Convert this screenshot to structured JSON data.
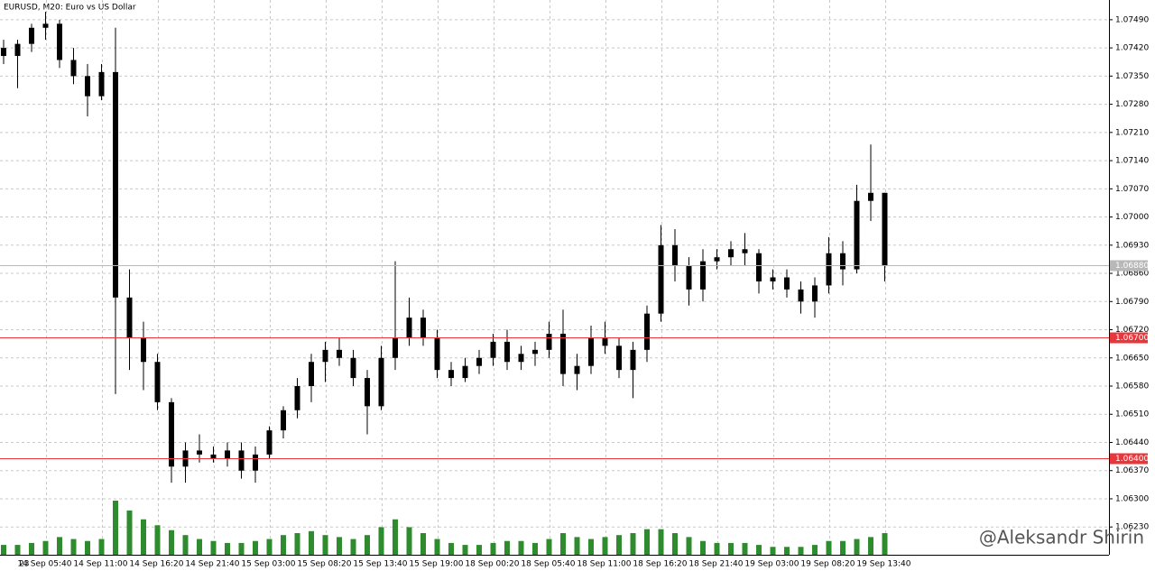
{
  "chart_data": {
    "type": "candlestick",
    "title": "EURUSD, M20:  Euro vs US Dollar",
    "watermark": "@Aleksandr Shirin",
    "categories": [
      "23",
      null,
      null,
      "14 Sep 05:40",
      null,
      null,
      null,
      "14 Sep 11:00",
      null,
      null,
      null,
      "14 Sep 16:20",
      null,
      null,
      null,
      "14 Sep 21:40",
      null,
      null,
      null,
      "15 Sep 03:00",
      null,
      null,
      null,
      "15 Sep 08:20",
      null,
      null,
      null,
      "15 Sep 13:40",
      null,
      null,
      null,
      "15 Sep 19:00",
      null,
      null,
      null,
      "18 Sep 00:20",
      null,
      null,
      null,
      "18 Sep 05:40",
      null,
      null,
      null,
      "18 Sep 11:00",
      null,
      null,
      null,
      "18 Sep 16:20",
      null,
      null,
      null,
      "18 Sep 21:40",
      null,
      null,
      null,
      "19 Sep 03:00",
      null,
      null,
      null,
      "19 Sep 08:20",
      null,
      null,
      null,
      "19 Sep 13:40"
    ],
    "open": [
      1.0742,
      1.074,
      1.0743,
      1.0747,
      1.0748,
      1.0739,
      1.0735,
      1.073,
      1.0736,
      1.068,
      1.067,
      1.0664,
      1.0654,
      1.0638,
      1.0642,
      1.0641,
      1.064,
      1.0642,
      1.0637,
      1.0641,
      1.0647,
      1.0652,
      1.0658,
      1.0664,
      1.0667,
      1.0665,
      1.066,
      1.0653,
      1.0665,
      1.067,
      1.0675,
      1.067,
      1.0662,
      1.066,
      1.0663,
      1.0665,
      1.0669,
      1.0664,
      1.0666,
      1.0667,
      1.0671,
      1.0661,
      1.0663,
      1.067,
      1.0668,
      1.0662,
      1.0667,
      1.0676,
      1.0693,
      1.0688,
      1.0682,
      1.0689,
      1.069,
      1.0692,
      1.0691,
      1.0684,
      1.0685,
      1.0682,
      1.0679,
      1.0683,
      1.0691,
      1.0687,
      1.0704,
      1.0706
    ],
    "high": [
      1.0744,
      1.0744,
      1.0748,
      1.0751,
      1.0749,
      1.0742,
      1.0738,
      1.0738,
      1.0747,
      1.0687,
      1.0674,
      1.0666,
      1.0655,
      1.0644,
      1.0646,
      1.0643,
      1.0644,
      1.0644,
      1.0643,
      1.0648,
      1.0653,
      1.066,
      1.0666,
      1.0669,
      1.067,
      1.0667,
      1.0662,
      1.0668,
      1.0689,
      1.068,
      1.0677,
      1.0672,
      1.0664,
      1.0665,
      1.0667,
      1.0671,
      1.0672,
      1.0668,
      1.0669,
      1.0674,
      1.0677,
      1.0666,
      1.0673,
      1.0674,
      1.067,
      1.0669,
      1.0678,
      1.0698,
      1.0697,
      1.069,
      1.0692,
      1.0692,
      1.0694,
      1.0696,
      1.0692,
      1.0687,
      1.0687,
      1.0684,
      1.0685,
      1.0695,
      1.0694,
      1.0708,
      1.0718,
      1.0706
    ],
    "low": [
      1.0738,
      1.0732,
      1.0741,
      1.0744,
      1.0737,
      1.0733,
      1.0725,
      1.0729,
      1.0656,
      1.0662,
      1.0657,
      1.0652,
      1.0634,
      1.0634,
      1.0639,
      1.0639,
      1.0638,
      1.0635,
      1.0634,
      1.064,
      1.0645,
      1.065,
      1.0654,
      1.0659,
      1.0663,
      1.0658,
      1.0646,
      1.0652,
      1.0662,
      1.0668,
      1.0668,
      1.066,
      1.0658,
      1.0659,
      1.0661,
      1.0663,
      1.0662,
      1.0662,
      1.0663,
      1.0665,
      1.0658,
      1.0657,
      1.0661,
      1.0666,
      1.066,
      1.0655,
      1.0664,
      1.0674,
      1.0684,
      1.0678,
      1.0679,
      1.0687,
      1.0688,
      1.0688,
      1.0681,
      1.0682,
      1.068,
      1.0676,
      1.0675,
      1.0681,
      1.0683,
      1.0686,
      1.0699,
      1.0684
    ],
    "close": [
      1.074,
      1.0743,
      1.0747,
      1.0748,
      1.0739,
      1.0735,
      1.073,
      1.0736,
      1.068,
      1.067,
      1.0664,
      1.0654,
      1.0638,
      1.0642,
      1.0641,
      1.064,
      1.0642,
      1.0637,
      1.0641,
      1.0647,
      1.0652,
      1.0658,
      1.0664,
      1.0667,
      1.0665,
      1.066,
      1.0653,
      1.0665,
      1.067,
      1.0675,
      1.067,
      1.0662,
      1.066,
      1.0663,
      1.0665,
      1.0669,
      1.0664,
      1.0666,
      1.0667,
      1.0671,
      1.0661,
      1.0663,
      1.067,
      1.0668,
      1.0662,
      1.0667,
      1.0676,
      1.0693,
      1.0688,
      1.0682,
      1.0689,
      1.069,
      1.0692,
      1.0691,
      1.0684,
      1.0685,
      1.0682,
      1.0679,
      1.0683,
      1.0691,
      1.0687,
      1.0704,
      1.0706,
      1.0688
    ],
    "volume": [
      10,
      10,
      12,
      14,
      18,
      16,
      14,
      16,
      55,
      45,
      36,
      30,
      25,
      20,
      16,
      14,
      12,
      12,
      14,
      16,
      20,
      22,
      24,
      20,
      18,
      16,
      20,
      28,
      36,
      28,
      22,
      16,
      12,
      10,
      10,
      12,
      14,
      14,
      12,
      16,
      22,
      18,
      16,
      18,
      20,
      22,
      26,
      26,
      22,
      18,
      14,
      12,
      12,
      12,
      10,
      8,
      8,
      8,
      10,
      14,
      14,
      16,
      18,
      22
    ],
    "color": "#000000",
    "volume_color": "#2e8b2e",
    "ylim": [
      1.06161,
      1.07539
    ],
    "yticks": [
      {
        "value": 1.0749,
        "label": "1.07490"
      },
      {
        "value": 1.0742,
        "label": "1.07420"
      },
      {
        "value": 1.0735,
        "label": "1.07350"
      },
      {
        "value": 1.0728,
        "label": "1.07280"
      },
      {
        "value": 1.0721,
        "label": "1.07210"
      },
      {
        "value": 1.0714,
        "label": "1.07140"
      },
      {
        "value": 1.0707,
        "label": "1.07070"
      },
      {
        "value": 1.07,
        "label": "1.07000"
      },
      {
        "value": 1.0693,
        "label": "1.06930"
      },
      {
        "value": 1.0686,
        "label": "1.06860"
      },
      {
        "value": 1.0679,
        "label": "1.06790"
      },
      {
        "value": 1.0672,
        "label": "1.06720"
      },
      {
        "value": 1.0665,
        "label": "1.06650"
      },
      {
        "value": 1.0658,
        "label": "1.06580"
      },
      {
        "value": 1.0651,
        "label": "1.06510"
      },
      {
        "value": 1.0644,
        "label": "1.06440"
      },
      {
        "value": 1.0637,
        "label": "1.06370"
      },
      {
        "value": 1.063,
        "label": "1.06300"
      },
      {
        "value": 1.0623,
        "label": "1.06230"
      }
    ],
    "levels": [
      {
        "value": 1.067,
        "label": "1.06700",
        "color": "#e8363a"
      },
      {
        "value": 1.064,
        "label": "1.06400",
        "color": "#e8363a"
      },
      {
        "value": 1.0688,
        "label": "1.06880",
        "color": "#b8b8b8"
      }
    ],
    "grid": true
  }
}
